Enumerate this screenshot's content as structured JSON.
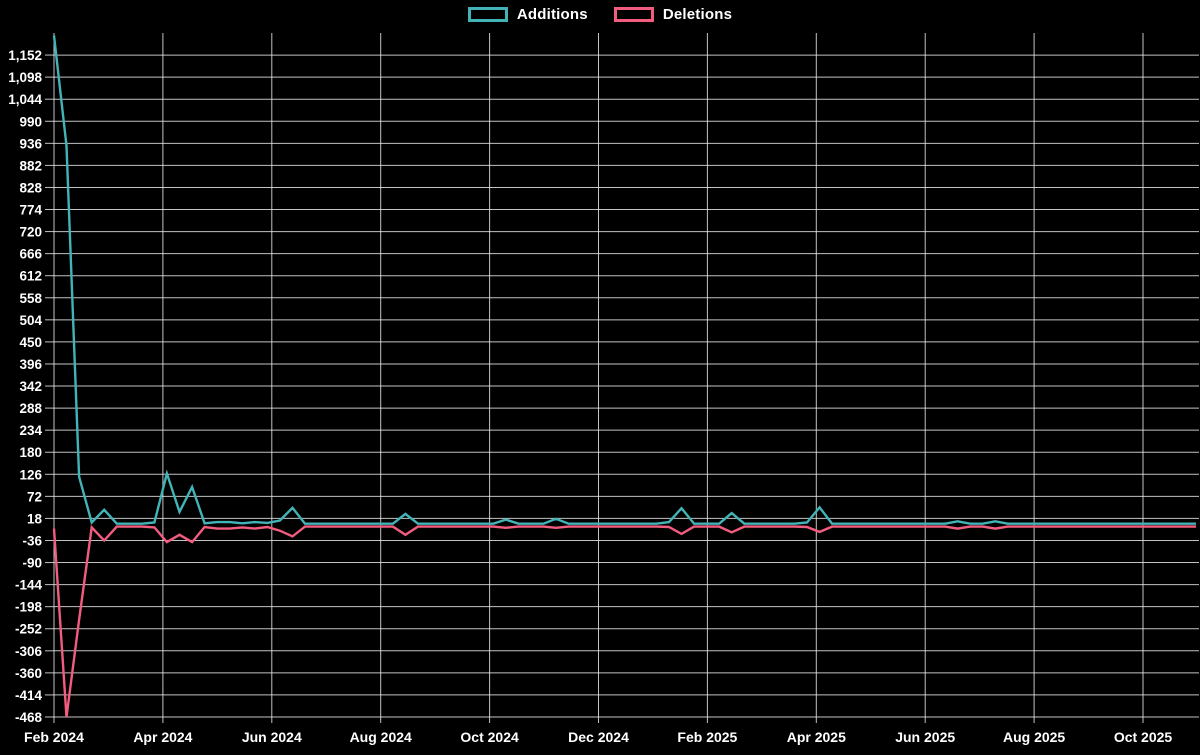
{
  "legend": {
    "items": [
      {
        "label": "Additions",
        "color": "#42b3b6"
      },
      {
        "label": "Deletions",
        "color": "#f25c7f"
      }
    ]
  },
  "colors": {
    "background": "#000000",
    "grid": "#e6e6e6",
    "axis_text": "#ffffff",
    "additions": "#42b3b6",
    "deletions": "#f25c7f"
  },
  "chart_data": {
    "type": "line",
    "title": "",
    "xlabel": "",
    "ylabel": "",
    "grid": true,
    "legend_position": "top-center",
    "x_unit": "week",
    "x_ticks": [
      "Feb 2024",
      "Apr 2024",
      "Jun 2024",
      "Aug 2024",
      "Oct 2024",
      "Dec 2024",
      "Feb 2025",
      "Apr 2025",
      "Jun 2025",
      "Aug 2025",
      "Oct 2025"
    ],
    "y_ticks": [
      1152,
      1098,
      1044,
      990,
      936,
      882,
      828,
      774,
      720,
      666,
      612,
      558,
      504,
      450,
      396,
      342,
      288,
      234,
      180,
      126,
      72,
      18,
      -36,
      -90,
      -144,
      -198,
      -252,
      -306,
      -360,
      -414,
      -468
    ],
    "ylim": [
      -468,
      1206
    ],
    "series": [
      {
        "name": "Additions",
        "color": "#42b3b6",
        "values": [
          1200,
          930,
          120,
          8,
          39,
          5,
          5,
          5,
          8,
          128,
          34,
          95,
          6,
          9,
          9,
          6,
          9,
          7,
          13,
          44,
          5,
          5,
          5,
          5,
          5,
          5,
          5,
          5,
          29,
          5,
          5,
          5,
          5,
          5,
          5,
          5,
          15,
          5,
          5,
          5,
          17,
          5,
          5,
          5,
          5,
          5,
          5,
          5,
          5,
          9,
          43,
          5,
          5,
          5,
          31,
          5,
          5,
          5,
          5,
          5,
          8,
          45,
          5,
          5,
          5,
          5,
          5,
          5,
          5,
          5,
          5,
          5,
          11,
          5,
          5,
          11,
          5,
          5,
          5,
          5,
          5,
          5,
          5,
          5,
          5,
          5,
          5,
          5,
          5,
          5,
          5,
          5
        ]
      },
      {
        "name": "Deletions",
        "color": "#f25c7f",
        "values": [
          -7,
          -468,
          -230,
          -4,
          -36,
          -2,
          -2,
          -2,
          -4,
          -40,
          -22,
          -40,
          -3,
          -7,
          -7,
          -4,
          -7,
          -3,
          -12,
          -26,
          -2,
          -2,
          -2,
          -2,
          -2,
          -2,
          -2,
          -2,
          -22,
          -2,
          -2,
          -2,
          -2,
          -2,
          -2,
          -2,
          -5,
          -2,
          -2,
          -2,
          -5,
          -2,
          -2,
          -2,
          -2,
          -2,
          -2,
          -2,
          -2,
          -3,
          -20,
          -2,
          -2,
          -2,
          -16,
          -2,
          -2,
          -2,
          -2,
          -2,
          -3,
          -15,
          -2,
          -2,
          -2,
          -2,
          -2,
          -2,
          -2,
          -2,
          -2,
          -2,
          -7,
          -2,
          -2,
          -7,
          -2,
          -2,
          -2,
          -2,
          -2,
          -2,
          -2,
          -2,
          -2,
          -2,
          -2,
          -2,
          -2,
          -2,
          -2,
          -2
        ]
      }
    ]
  }
}
